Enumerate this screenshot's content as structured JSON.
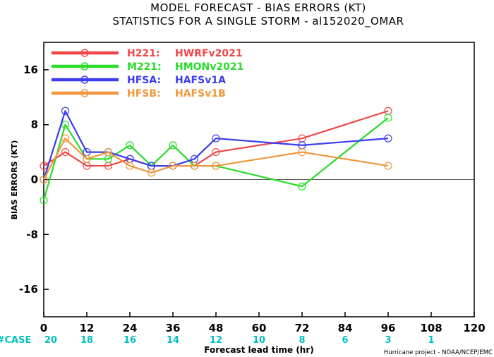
{
  "chart_data": {
    "type": "line",
    "title": "MODEL FORECAST - BIAS ERRORS (KT)",
    "subtitle": "STATISTICS FOR A SINGLE STORM - al152020_OMAR",
    "xlabel": "Forecast lead time (hr)",
    "ylabel": "BIAS ERRORS (KT)",
    "xlim": [
      0,
      120
    ],
    "ylim": [
      -20,
      20
    ],
    "xticks": [
      0,
      12,
      24,
      36,
      48,
      60,
      72,
      84,
      96,
      108,
      120
    ],
    "yticks": [
      -16,
      -8,
      0,
      8,
      16
    ],
    "zero_line": true,
    "grid": false,
    "legend_position": "top-left",
    "case_label": "#CASE",
    "case_label_color": "#00bfbf",
    "cases": [
      {
        "x": 0,
        "n": "20"
      },
      {
        "x": 12,
        "n": "18"
      },
      {
        "x": 24,
        "n": "16"
      },
      {
        "x": 36,
        "n": "14"
      },
      {
        "x": 48,
        "n": "12"
      },
      {
        "x": 60,
        "n": "10"
      },
      {
        "x": 72,
        "n": "8"
      },
      {
        "x": 84,
        "n": "6"
      },
      {
        "x": 96,
        "n": "3"
      },
      {
        "x": 108,
        "n": "1"
      }
    ],
    "series": [
      {
        "name": "H221:",
        "desc": "HWRFv2021",
        "color": "#f04848",
        "x": [
          0,
          6,
          12,
          18,
          24,
          30,
          36,
          42,
          48,
          72,
          96
        ],
        "y": [
          2,
          4,
          2,
          2,
          3,
          2,
          2,
          2,
          4,
          6,
          10
        ]
      },
      {
        "name": "M221:",
        "desc": "HMONv2021",
        "color": "#28dc28",
        "x": [
          0,
          6,
          12,
          18,
          24,
          30,
          36,
          42,
          48,
          72,
          96
        ],
        "y": [
          -3,
          8,
          3,
          3,
          5,
          2,
          5,
          2,
          2,
          -1,
          9
        ]
      },
      {
        "name": "HFSA:",
        "desc": "HAFSv1A",
        "color": "#3c3cf0",
        "x": [
          0,
          6,
          12,
          18,
          24,
          30,
          36,
          42,
          48,
          72,
          96
        ],
        "y": [
          0,
          10,
          4,
          4,
          3,
          2,
          2,
          3,
          6,
          5,
          6
        ]
      },
      {
        "name": "HFSB:",
        "desc": "HAFSv1B",
        "color": "#f0963c",
        "x": [
          0,
          6,
          12,
          18,
          24,
          30,
          36,
          42,
          48,
          72,
          96
        ],
        "y": [
          0,
          6,
          3,
          4,
          2,
          1,
          2,
          2,
          2,
          4,
          2
        ]
      }
    ]
  },
  "credit": "Hurricane project - NOAA/NCEP/EMC"
}
